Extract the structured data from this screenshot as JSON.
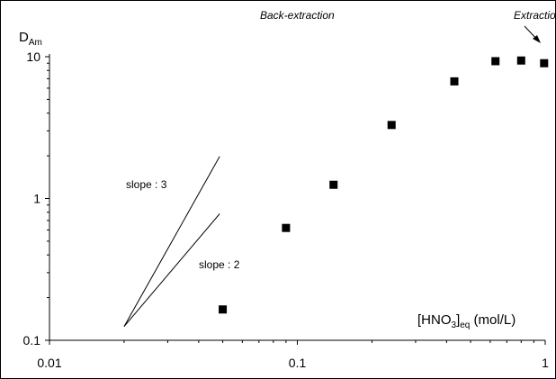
{
  "chart_data": {
    "type": "scatter",
    "x_scale": "log",
    "y_scale": "log",
    "xlim": [
      0.01,
      1
    ],
    "ylim": [
      0.1,
      10
    ],
    "x_ticks": [
      "0.01",
      "0.1",
      "1"
    ],
    "y_ticks": [
      "0.1",
      "1",
      "10"
    ],
    "ylabel": {
      "main": "D",
      "sub": "Am"
    },
    "xlabel": {
      "pre": "[HNO",
      "sub1": "3",
      "mid": "]",
      "sub2": "eq",
      "post": " (mol/L)"
    },
    "grid": false,
    "series": [
      {
        "marker": "square",
        "color": "#000000",
        "x": [
          0.05,
          0.09,
          0.14,
          0.24,
          0.43,
          0.63,
          0.8,
          0.99
        ],
        "y": [
          0.165,
          0.62,
          1.25,
          3.3,
          6.7,
          9.3,
          9.4,
          9.0
        ]
      }
    ],
    "slope_lines": [
      {
        "label": "slope : 3",
        "x": [
          0.02,
          0.0486
        ],
        "y": [
          0.125,
          1.98
        ]
      },
      {
        "label": "slope : 2",
        "x": [
          0.02,
          0.0486
        ],
        "y": [
          0.125,
          0.78
        ]
      }
    ],
    "annotations": {
      "back_extraction": "Back-extraction",
      "extraction": "Extraction"
    }
  }
}
